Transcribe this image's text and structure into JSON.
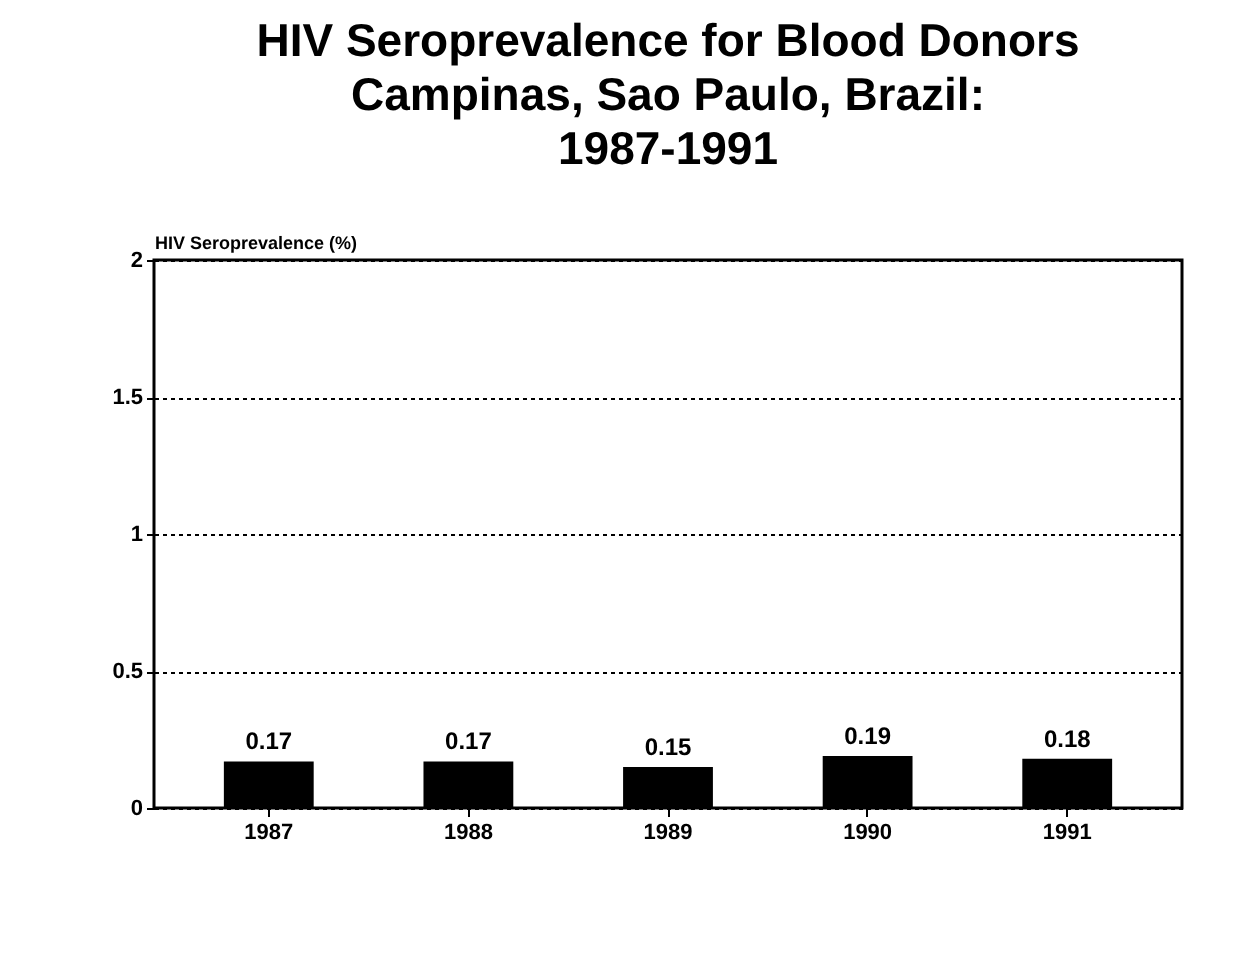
{
  "chart_data": {
    "type": "bar",
    "title": "HIV Seroprevalence for Blood Donors\nCampinas, Sao Paulo, Brazil:\n1987-1991",
    "ylabel": "HIV Seroprevalence (%)",
    "categories": [
      "1987",
      "1988",
      "1989",
      "1990",
      "1991"
    ],
    "values": [
      0.17,
      0.17,
      0.15,
      0.19,
      0.18
    ],
    "color": "#000000",
    "ylim": [
      0,
      2
    ],
    "yticks": [
      0,
      0.5,
      1,
      1.5,
      2
    ],
    "grid": "y",
    "data_labels": true
  }
}
